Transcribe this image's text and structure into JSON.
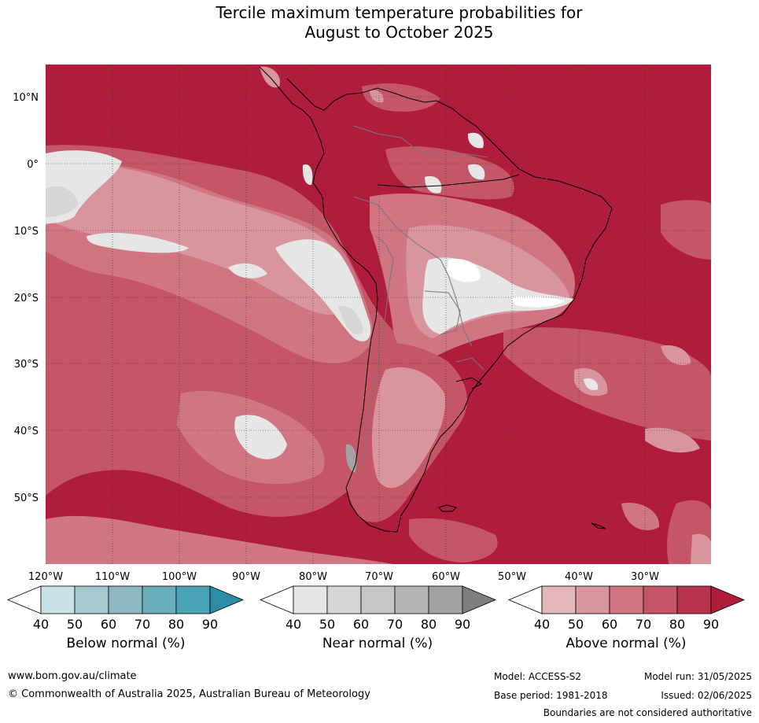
{
  "title": {
    "line1": "Tercile maximum temperature probabilities for",
    "line2": "August to October 2025"
  },
  "map": {
    "lat_labels": [
      "10°N",
      "0°",
      "10°S",
      "20°S",
      "30°S",
      "40°S",
      "50°S"
    ],
    "lon_labels": [
      "120°W",
      "110°W",
      "100°W",
      "90°W",
      "80°W",
      "70°W",
      "60°W",
      "50°W",
      "40°W",
      "30°W"
    ],
    "ocean_fill": "#b01c3c"
  },
  "colorbars": [
    {
      "name": "below",
      "label": "Below normal (%)",
      "ticks": [
        "40",
        "50",
        "60",
        "70",
        "80",
        "90"
      ],
      "colors": [
        "#c8e0e6",
        "#a6c8cf",
        "#8db7c3",
        "#6aaebb",
        "#4aa4b5",
        "#2b8ea4"
      ]
    },
    {
      "name": "near",
      "label": "Near normal (%)",
      "ticks": [
        "40",
        "50",
        "60",
        "70",
        "80",
        "90"
      ],
      "colors": [
        "#e6e6e6",
        "#d6d6d6",
        "#c6c6c6",
        "#b4b4b4",
        "#a2a2a2",
        "#7e7e7e"
      ]
    },
    {
      "name": "above",
      "label": "Above normal (%)",
      "ticks": [
        "40",
        "50",
        "60",
        "70",
        "80",
        "90"
      ],
      "colors": [
        "#e2b6ba",
        "#d9959e",
        "#cf7682",
        "#c45668",
        "#b8344d",
        "#b01c3c"
      ]
    }
  ],
  "footer": {
    "website": "www.bom.gov.au/climate",
    "copyright": "© Commonwealth of Australia 2025, Australian Bureau of Meteorology",
    "model": "Model: ACCESS-S2",
    "model_run": "Model run: 31/05/2025",
    "base_period": "Base period: 1981-2018",
    "issued": "Issued: 02/06/2025",
    "disclaimer": "Boundaries are not considered authoritative"
  }
}
